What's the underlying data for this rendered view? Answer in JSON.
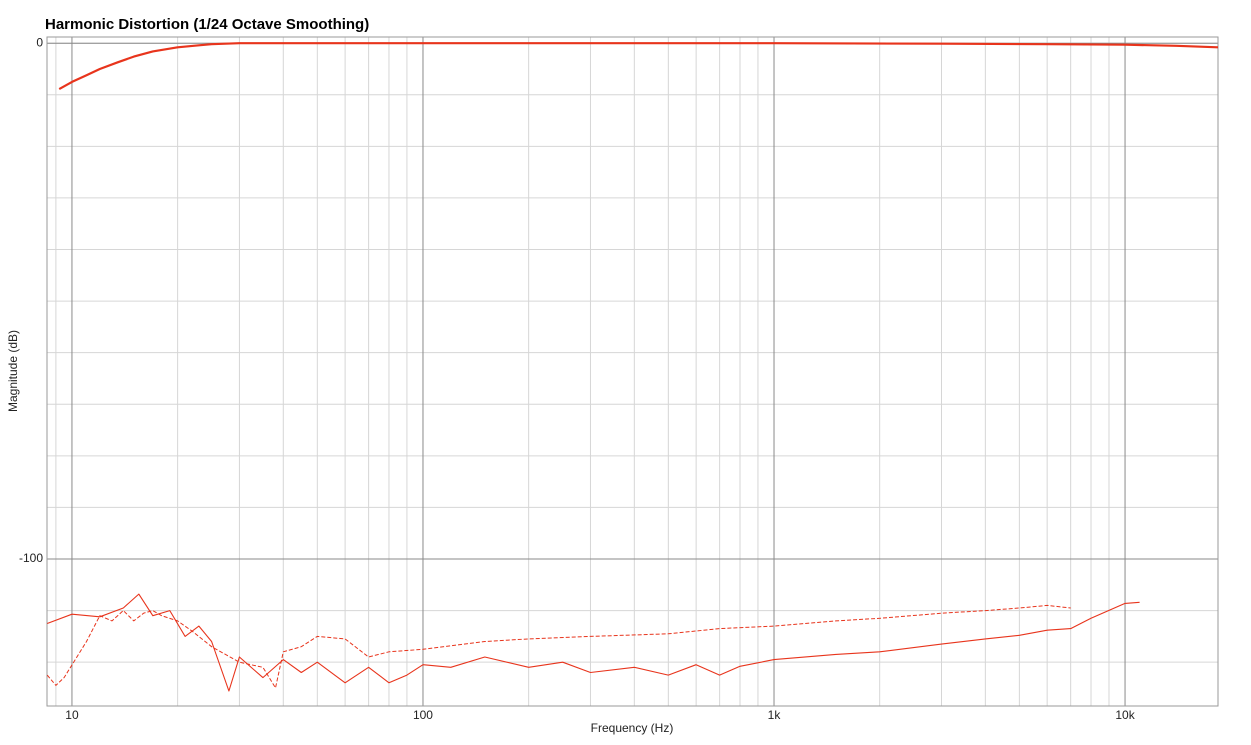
{
  "chart_data": {
    "type": "line",
    "title": "Harmonic Distortion (1/24 Octave Smoothing)",
    "x_label": "Frequency (Hz)",
    "y_label": "Magnitude (dB)",
    "log_x": true,
    "grid": true,
    "minor_grid": true,
    "xlim": [
      8.49,
      18400
    ],
    "ylim": [
      -128.5,
      1.2
    ],
    "xticks": [
      10,
      100,
      {
        "value": 1000,
        "label": "1k"
      },
      {
        "value": 10000,
        "label": "10k"
      }
    ],
    "yticks": [
      -100,
      0
    ],
    "series": [
      {
        "color": "#e8341c",
        "width": 2.2,
        "dash": false,
        "x": [
          9.2,
          10,
          11,
          12,
          13.5,
          15,
          17,
          20,
          23,
          25,
          30,
          50,
          100,
          1000,
          3000,
          6000,
          10000,
          14000,
          18400
        ],
        "values": [
          -8.9,
          -7.5,
          -6.2,
          -5,
          -3.7,
          -2.6,
          -1.6,
          -0.8,
          -0.4,
          -0.2,
          0,
          0,
          0,
          0,
          -0.1,
          -0.2,
          -0.3,
          -0.5,
          -0.8
        ]
      },
      {
        "color": "#e8341c",
        "width": 1.1,
        "dash": false,
        "x": [
          8.5,
          10,
          12,
          14,
          15.5,
          17,
          19,
          21,
          23,
          25,
          28,
          30,
          35,
          40,
          45,
          50,
          60,
          70,
          80,
          90,
          100,
          120,
          150,
          200,
          250,
          300,
          400,
          500,
          600,
          700,
          800,
          1000,
          1500,
          2000,
          3000,
          4000,
          5000,
          6000,
          7000,
          8000,
          10000,
          11000
        ],
        "values": [
          -112.5,
          -110.7,
          -111.2,
          -109.5,
          -106.8,
          -111,
          -110,
          -115,
          -113,
          -116,
          -125.6,
          -119,
          -123,
          -119.5,
          -122,
          -120,
          -124,
          -121,
          -124,
          -122.5,
          -120.5,
          -121,
          -119,
          -121,
          -120,
          -122,
          -121,
          -122.5,
          -120.5,
          -122.5,
          -120.8,
          -119.5,
          -118.5,
          -118,
          -116.5,
          -115.5,
          -114.8,
          -113.8,
          -113.5,
          -111.5,
          -108.6,
          -108.4
        ]
      },
      {
        "color": "#e8341c",
        "width": 1,
        "dash": true,
        "x": [
          8.5,
          9,
          9.5,
          11,
          12,
          13,
          14,
          15,
          16,
          17,
          18,
          20,
          22,
          25,
          30,
          35,
          38,
          40,
          45,
          50,
          60,
          70,
          80,
          100,
          150,
          200,
          300,
          500,
          700,
          1000,
          1500,
          2000,
          3000,
          4000,
          5000,
          6000,
          7000
        ],
        "values": [
          -122.5,
          -124.5,
          -123,
          -116,
          -111,
          -112,
          -110,
          -112,
          -110.5,
          -110,
          -111,
          -112,
          -114,
          -117,
          -120,
          -121,
          -125,
          -118,
          -117,
          -115,
          -115.5,
          -119,
          -118,
          -117.5,
          -116,
          -115.5,
          -115,
          -114.5,
          -113.5,
          -113,
          -112,
          -111.5,
          -110.5,
          -110,
          -109.5,
          -109,
          -109.5
        ]
      }
    ]
  }
}
